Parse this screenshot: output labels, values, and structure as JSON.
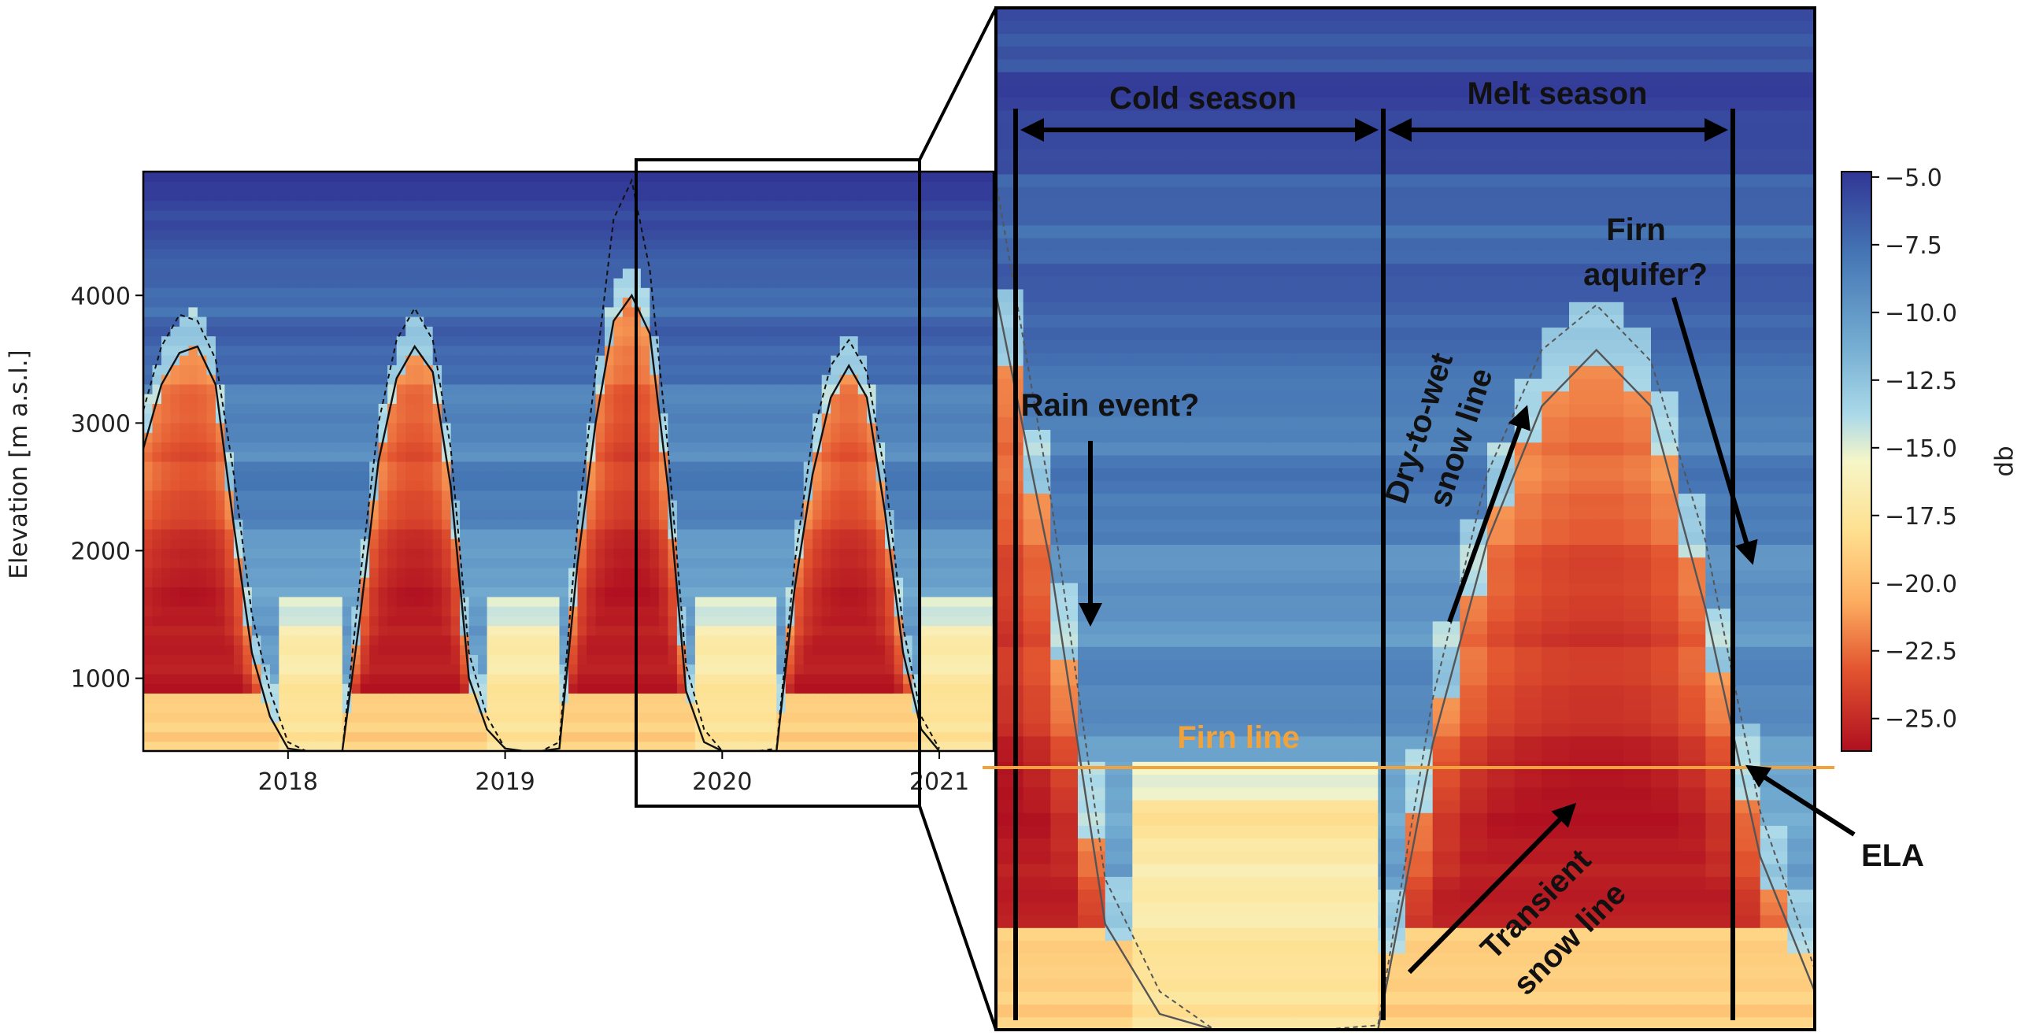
{
  "chart_data": [
    {
      "type": "heatmap",
      "panel": "overview",
      "ylabel": "Elevation [m a.s.l.]",
      "xlabel": "",
      "x_ticks": [
        "2018",
        "2019",
        "2020",
        "2021"
      ],
      "x_range": [
        "2017-05",
        "2021-04"
      ],
      "y_ticks": [
        1000,
        2000,
        3000,
        4000
      ],
      "ylim": [
        430,
        4970
      ],
      "colorbar": {
        "label": "db",
        "range": [
          -26.2,
          -4.8
        ],
        "ticks": [
          "−5.0",
          "−7.5",
          "−10.0",
          "−12.5",
          "−15.0",
          "−17.5",
          "−20.0",
          "−22.5",
          "−25.0"
        ],
        "colormap": "RdYlBu"
      },
      "series": [
        {
          "style": "solid",
          "points": [
            [
              "2017-05",
              2800
            ],
            [
              "2017-06",
              3300
            ],
            [
              "2017-07",
              3550
            ],
            [
              "2017-08",
              3600
            ],
            [
              "2017-09",
              3300
            ],
            [
              "2017-10",
              2200
            ],
            [
              "2017-11",
              1200
            ],
            [
              "2017-12",
              700
            ],
            [
              "2018-01",
              450
            ],
            [
              "2018-02",
              430
            ],
            [
              "2018-03",
              430
            ],
            [
              "2018-04",
              430
            ],
            [
              "2018-05",
              1500
            ],
            [
              "2018-06",
              2700
            ],
            [
              "2018-07",
              3350
            ],
            [
              "2018-08",
              3600
            ],
            [
              "2018-09",
              3400
            ],
            [
              "2018-10",
              2500
            ],
            [
              "2018-11",
              1000
            ],
            [
              "2018-12",
              600
            ],
            [
              "2019-01",
              450
            ],
            [
              "2019-02",
              430
            ],
            [
              "2019-03",
              430
            ],
            [
              "2019-04",
              450
            ],
            [
              "2019-05",
              1900
            ],
            [
              "2019-06",
              3000
            ],
            [
              "2019-07",
              3800
            ],
            [
              "2019-08",
              4000
            ],
            [
              "2019-09",
              3700
            ],
            [
              "2019-10",
              2500
            ],
            [
              "2019-11",
              900
            ],
            [
              "2019-12",
              500
            ],
            [
              "2020-01",
              430
            ],
            [
              "2020-02",
              430
            ],
            [
              "2020-03",
              430
            ],
            [
              "2020-04",
              430
            ],
            [
              "2020-05",
              1700
            ],
            [
              "2020-06",
              2600
            ],
            [
              "2020-07",
              3200
            ],
            [
              "2020-08",
              3450
            ],
            [
              "2020-09",
              3200
            ],
            [
              "2020-10",
              2300
            ],
            [
              "2020-11",
              1200
            ],
            [
              "2020-12",
              600
            ],
            [
              "2021-01",
              430
            ]
          ]
        },
        {
          "style": "dashed",
          "points": [
            [
              "2017-05",
              3100
            ],
            [
              "2017-06",
              3600
            ],
            [
              "2017-07",
              3850
            ],
            [
              "2017-08",
              3800
            ],
            [
              "2017-09",
              3500
            ],
            [
              "2017-10",
              2600
            ],
            [
              "2017-11",
              1500
            ],
            [
              "2017-12",
              900
            ],
            [
              "2018-01",
              500
            ],
            [
              "2018-02",
              430
            ],
            [
              "2018-03",
              430
            ],
            [
              "2018-04",
              430
            ],
            [
              "2018-05",
              1800
            ],
            [
              "2018-06",
              3000
            ],
            [
              "2018-07",
              3650
            ],
            [
              "2018-08",
              3900
            ],
            [
              "2018-09",
              3650
            ],
            [
              "2018-10",
              2800
            ],
            [
              "2018-11",
              1200
            ],
            [
              "2018-12",
              700
            ],
            [
              "2019-01",
              450
            ],
            [
              "2019-02",
              430
            ],
            [
              "2019-03",
              430
            ],
            [
              "2019-04",
              500
            ],
            [
              "2019-05",
              2200
            ],
            [
              "2019-06",
              3400
            ],
            [
              "2019-07",
              4600
            ],
            [
              "2019-08",
              4900
            ],
            [
              "2019-09",
              4200
            ],
            [
              "2019-10",
              2800
            ],
            [
              "2019-11",
              1100
            ],
            [
              "2019-12",
              600
            ],
            [
              "2020-01",
              430
            ],
            [
              "2020-02",
              430
            ],
            [
              "2020-03",
              430
            ],
            [
              "2020-04",
              450
            ],
            [
              "2020-05",
              1900
            ],
            [
              "2020-06",
              2900
            ],
            [
              "2020-07",
              3450
            ],
            [
              "2020-08",
              3650
            ],
            [
              "2020-09",
              3400
            ],
            [
              "2020-10",
              2600
            ],
            [
              "2020-11",
              1400
            ],
            [
              "2020-12",
              700
            ],
            [
              "2021-01",
              450
            ]
          ]
        }
      ],
      "highlight_window": [
        "2019-10",
        "2020-11"
      ]
    },
    {
      "type": "heatmap",
      "panel": "zoom",
      "x_range": [
        "2019-09",
        "2020-12"
      ],
      "firn_line_elevation": 550,
      "annotations": {
        "cold_season": "Cold season",
        "melt_season": "Melt season",
        "rain_event": "Rain event?",
        "firn_aquifer_line1": "Firn",
        "firn_aquifer_line2": "aquifer?",
        "dry_to_wet_line1": "Dry-to-wet",
        "dry_to_wet_line2": "snow line",
        "transient_line1": "Transient",
        "transient_line2": "snow line",
        "firn_line": "Firn line",
        "ela": "ELA"
      }
    }
  ]
}
